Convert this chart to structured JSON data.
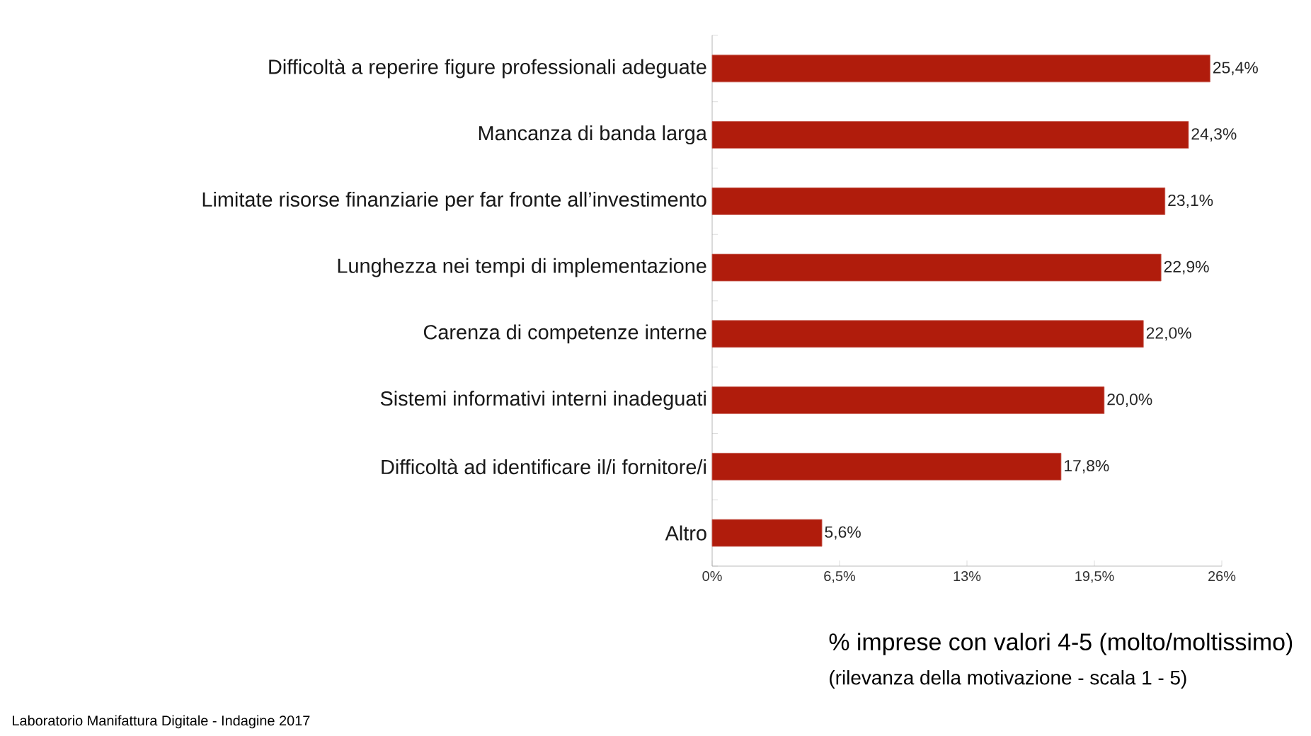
{
  "chart_data": {
    "type": "bar",
    "orientation": "horizontal",
    "categories": [
      "Difficoltà a reperire figure professionali adeguate",
      "Mancanza di banda larga",
      "Limitate risorse finanziarie per far fronte all’investimento",
      "Lunghezza nei tempi di implementazione",
      "Carenza di competenze interne",
      "Sistemi informativi interni inadeguati",
      "Difficoltà ad identificare il/i fornitore/i",
      "Altro"
    ],
    "values": [
      25.4,
      24.3,
      23.1,
      22.9,
      22.0,
      20.0,
      17.8,
      5.6
    ],
    "value_labels": [
      "25,4%",
      "24,3%",
      "23,1%",
      "22,9%",
      "22,0%",
      "20,0%",
      "17,8%",
      "5,6%"
    ],
    "color": "#b01c0c",
    "xlim": [
      0,
      26
    ],
    "xticks": [
      {
        "value": 0,
        "label": "0%"
      },
      {
        "value": 6.5,
        "label": "6,5%"
      },
      {
        "value": 13,
        "label": "13%"
      },
      {
        "value": 19.5,
        "label": "19,5%"
      },
      {
        "value": 26,
        "label": "26%"
      }
    ],
    "xlabel": "% imprese con valori 4-5 (molto/moltissimo)",
    "annotations": [
      "(rilevanza della motivazione - scala 1 - 5)",
      "Laboratorio Manifattura Digitale - Indagine 2017"
    ]
  }
}
